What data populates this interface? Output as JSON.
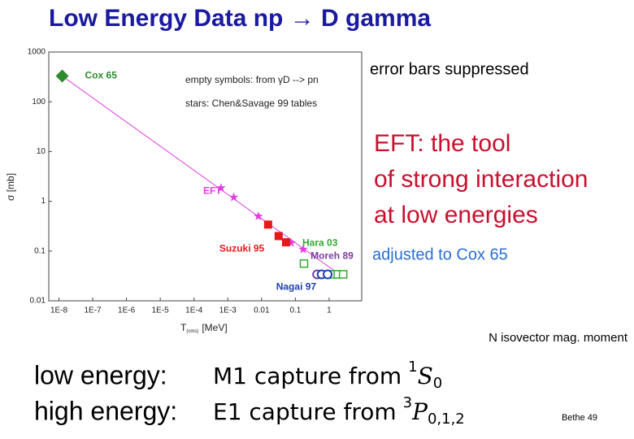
{
  "title": "Low Energy Data np → D gamma",
  "notes": {
    "error_bars": "error bars suppressed",
    "eft": [
      "EFT: the tool",
      "of strong interaction",
      "at low energies"
    ],
    "adjusted": "adjusted to Cox 65",
    "isovector": "N isovector mag. moment",
    "bethe": "Bethe 49"
  },
  "regimes": [
    {
      "label": "low energy:",
      "formula": {
        "text": "M1 capture from",
        "sup": "1",
        "symbol": "S",
        "sub": "0"
      }
    },
    {
      "label": "high energy:",
      "formula": {
        "text": "E1 capture from",
        "sup": "3",
        "symbol": "P",
        "sub": "0,1,2"
      }
    }
  ],
  "chart_data": {
    "type": "scatter",
    "ylabel": "σ [mb]",
    "xlabel": {
      "symbol": "T",
      "subscript": "(cms)",
      "unit": "[MeV]"
    },
    "log_x": true,
    "log_y": true,
    "xlim": [
      5e-09,
      9.2
    ],
    "ylim": [
      0.01,
      1000
    ],
    "xticks": [
      {
        "value": 1e-08,
        "label": "1E-8"
      },
      {
        "value": 1e-07,
        "label": "1E-7"
      },
      {
        "value": 1e-06,
        "label": "1E-6"
      },
      {
        "value": 1e-05,
        "label": "1E-5"
      },
      {
        "value": 0.0001,
        "label": "1E-4"
      },
      {
        "value": 0.001,
        "label": "1E-3"
      },
      0.01,
      0.1,
      1
    ],
    "yticks": [
      0.01,
      0.1,
      1,
      10,
      100,
      1000
    ],
    "annotations": [
      "empty symbols: from γD --> pn",
      "stars: Chen&Savage 99 tables"
    ],
    "line": {
      "color": "#e040e0",
      "x": [
        1.25e-08,
        2.6
      ],
      "values": [
        330,
        0.03
      ]
    },
    "series": [
      {
        "name": "Cox 65",
        "color": "#2e8b2e",
        "marker": "diamond",
        "x": [
          1.25e-08
        ],
        "values": [
          330
        ]
      },
      {
        "name": "EFT",
        "color": "#e040e0",
        "marker": "star",
        "x": [
          0.00063,
          0.0015,
          0.008,
          0.074,
          0.17
        ],
        "values": [
          1.85,
          1.2,
          0.5,
          0.147,
          0.108
        ]
      },
      {
        "name": "Suzuki 95",
        "color": "#e41a1a",
        "marker": "square",
        "x": [
          0.0156,
          0.032,
          0.053
        ],
        "values": [
          0.34,
          0.2,
          0.15
        ]
      },
      {
        "name": "Hara 03",
        "color": "#33aa33",
        "marker": "open-square",
        "x": [
          0.18,
          1.3,
          1.8,
          2.6
        ],
        "values": [
          0.056,
          0.034,
          0.034,
          0.034
        ]
      },
      {
        "name": "Moreh 89",
        "color": "#7b3fa0",
        "marker": "open-circle",
        "x": [
          0.44
        ],
        "values": [
          0.034
        ]
      },
      {
        "name": "Nagai 97",
        "color": "#2040b0",
        "marker": "open-circle",
        "x": [
          0.6,
          0.9
        ],
        "values": [
          0.034,
          0.034
        ]
      }
    ]
  }
}
